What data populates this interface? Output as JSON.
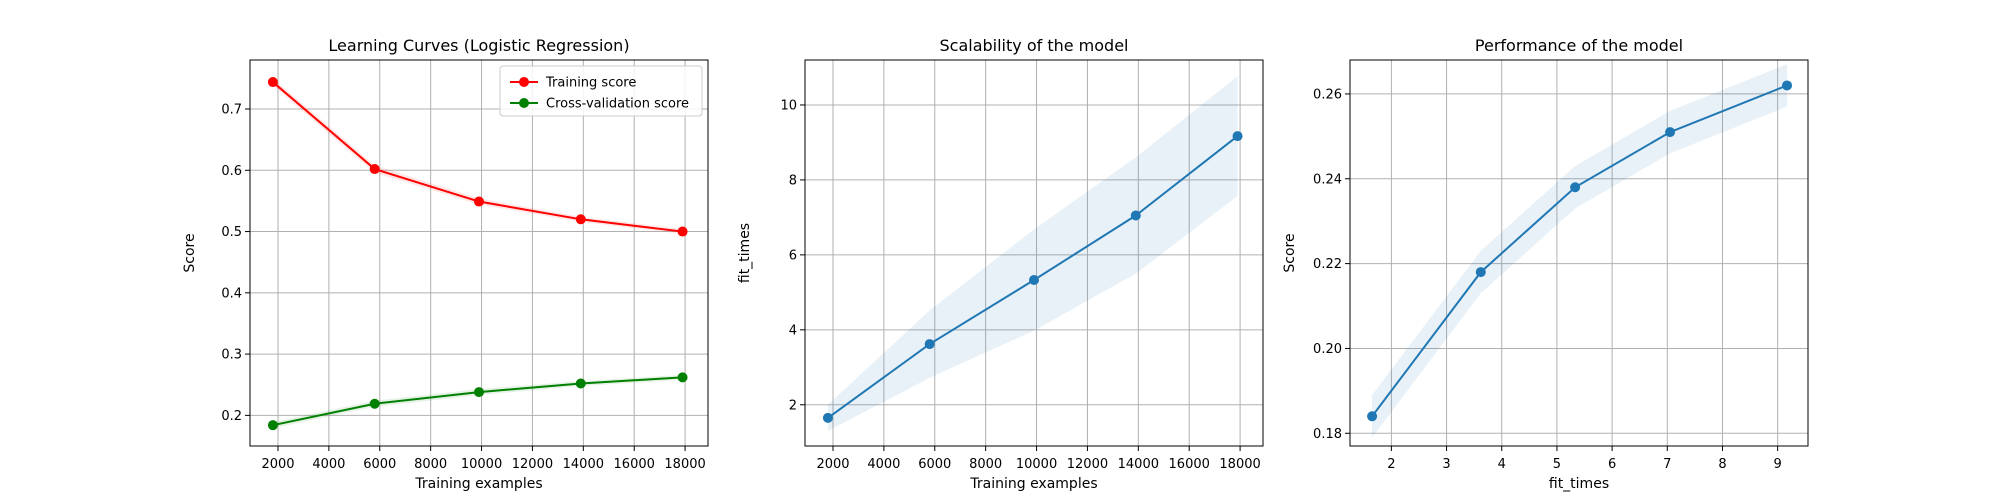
{
  "chart_data": [
    {
      "type": "line",
      "title": "Learning Curves (Logistic Regression)",
      "xlabel": "Training examples",
      "ylabel": "Score",
      "xlim": [
        900,
        18900
      ],
      "ylim": [
        0.15,
        0.78
      ],
      "xticks": [
        "2000",
        "4000",
        "6000",
        "8000",
        "10000",
        "12000",
        "14000",
        "16000",
        "18000"
      ],
      "yticks": [
        "0.2",
        "0.3",
        "0.4",
        "0.5",
        "0.6",
        "0.7"
      ],
      "grid": true,
      "legend": "upper right",
      "x": [
        1800,
        5800,
        9900,
        13900,
        17900
      ],
      "series": [
        {
          "name": "Training score",
          "color": "#ff0000",
          "values": [
            0.744,
            0.602,
            0.549,
            0.52,
            0.5
          ],
          "band": [
            0.006,
            0.006,
            0.005,
            0.004,
            0.004
          ]
        },
        {
          "name": "Cross-validation score",
          "color": "#008000",
          "values": [
            0.184,
            0.219,
            0.238,
            0.252,
            0.262
          ],
          "band": [
            0.005,
            0.005,
            0.005,
            0.004,
            0.004
          ]
        }
      ]
    },
    {
      "type": "line",
      "title": "Scalability of the model",
      "xlabel": "Training examples",
      "ylabel": "fit_times",
      "xlim": [
        900,
        18900
      ],
      "ylim": [
        0.9,
        11.2
      ],
      "xticks": [
        "2000",
        "4000",
        "6000",
        "8000",
        "10000",
        "12000",
        "14000",
        "16000",
        "18000"
      ],
      "yticks": [
        "2",
        "4",
        "6",
        "8",
        "10"
      ],
      "grid": true,
      "x": [
        1800,
        5800,
        9900,
        13900,
        17900
      ],
      "series": [
        {
          "color": "#1f77b4",
          "values": [
            1.65,
            3.62,
            5.33,
            7.05,
            9.17
          ],
          "band": [
            0.35,
            0.9,
            1.35,
            1.55,
            1.6
          ]
        }
      ]
    },
    {
      "type": "line",
      "title": "Performance of the model",
      "xlabel": "fit_times",
      "ylabel": "Score",
      "xlim": [
        1.25,
        9.55
      ],
      "ylim": [
        0.177,
        0.268
      ],
      "xticks": [
        "2",
        "3",
        "4",
        "5",
        "6",
        "7",
        "8",
        "9"
      ],
      "yticks": [
        "0.18",
        "0.20",
        "0.22",
        "0.24",
        "0.26"
      ],
      "grid": true,
      "x": [
        1.65,
        3.62,
        5.33,
        7.05,
        9.17
      ],
      "series": [
        {
          "color": "#1f77b4",
          "values": [
            0.184,
            0.218,
            0.238,
            0.251,
            0.262
          ],
          "band": [
            0.005,
            0.005,
            0.005,
            0.005,
            0.005
          ]
        }
      ]
    }
  ]
}
